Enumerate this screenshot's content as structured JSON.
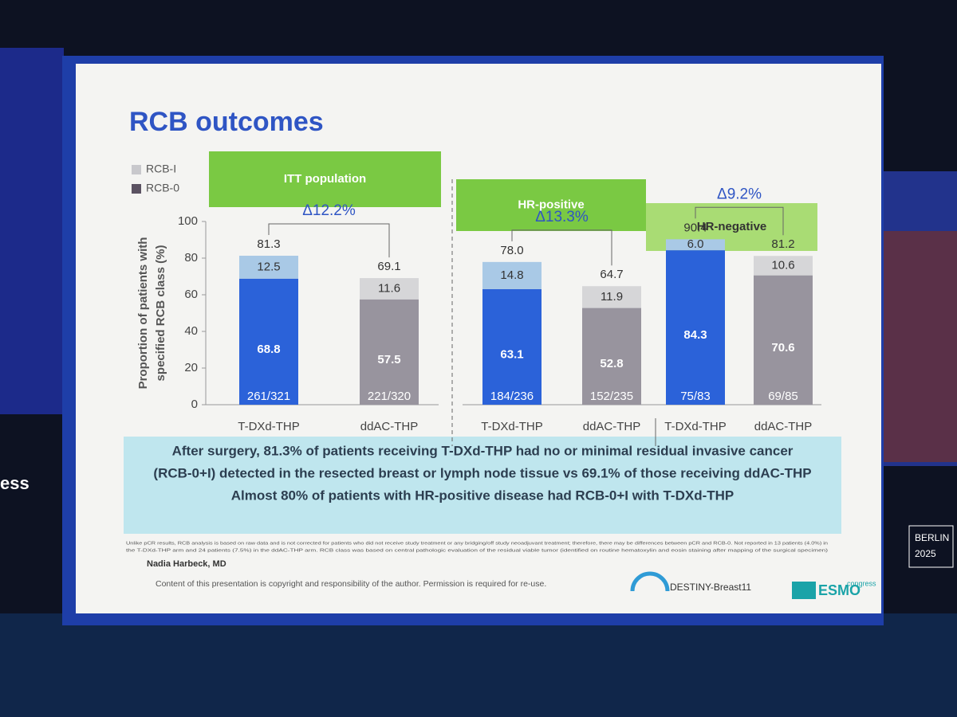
{
  "slide": {
    "title": "RCB outcomes",
    "summary": [
      "After surgery, 81.3% of patients receiving T-DXd-THP had no or minimal residual invasive cancer",
      "(RCB-0+I) detected in the resected breast or lymph node tissue vs 69.1% of those receiving ddAC-THP",
      "Almost 80% of patients with HR-positive disease had RCB-0+I with T-DXd-THP"
    ],
    "footnote": [
      "Unlike pCR results, RCB analysis is based on raw data and is not corrected for patients who did not receive study treatment or any bridging/off study neoadjuvant treatment; therefore, there may be differences between pCR and RCB-0. Not reported in 13 patients (4.0%) in",
      "the T-DXd-THP arm and 24 patients (7.5%) in the ddAC-THP arm. RCB class was based on central pathologic evaluation of the residual viable tumor (identified on routine hematoxylin and eosin staining after mapping of the surgical specimen)"
    ],
    "author": "Nadia Harbeck, MD",
    "copyright": "Content of this presentation is copyright and responsibility of the author. Permission is required for re-use.",
    "logo": "DESTINY-Breast11",
    "congress_city": "BERLIN",
    "congress_year": "2025",
    "congress_word": "congress",
    "left_screen_text": "ess"
  },
  "chart_data": {
    "type": "bar",
    "stacked": true,
    "y_label": [
      "Proportion of patients with",
      "specified RCB class (%)"
    ],
    "ylim": [
      0,
      100
    ],
    "yticks": [
      0,
      20,
      40,
      60,
      80,
      100
    ],
    "categories": [
      "T-DXd-THP",
      "ddAC-THP",
      "T-DXd-THP",
      "ddAC-THP",
      "T-DXd-THP",
      "ddAC-THP"
    ],
    "groups": [
      {
        "label": "ITT population",
        "delta": "Δ12.2%",
        "color": "#7ac943"
      },
      {
        "label": "HR-positive",
        "delta": "Δ13.3%",
        "color": "#7ac943"
      },
      {
        "label": "HR-negative",
        "delta": "Δ9.2%",
        "color": "#a9dc74"
      }
    ],
    "series": [
      {
        "name": "RCB-0",
        "color": "#5b5262",
        "bar_colors": [
          "#2b62d9",
          "#98949e",
          "#2b62d9",
          "#98949e",
          "#2b62d9",
          "#98949e"
        ],
        "values": [
          68.8,
          57.5,
          63.1,
          52.8,
          84.3,
          70.6
        ]
      },
      {
        "name": "RCB-I",
        "color": "#c8c8cc",
        "bar_colors": [
          "#a9c9e6",
          "#d6d6d8",
          "#a9c9e6",
          "#d6d6d8",
          "#a9c9e6",
          "#d6d6d8"
        ],
        "values": [
          12.5,
          11.6,
          14.8,
          11.9,
          6.0,
          10.6
        ],
        "value_labels": [
          "12.5",
          "11.6",
          "14.8",
          "11.9",
          "6.0",
          "10.6"
        ]
      }
    ],
    "total_labels": [
      "81.3",
      "69.1",
      "78.0",
      "64.7",
      "90.4",
      "81.2"
    ],
    "n_labels": [
      "261/321",
      "221/320",
      "184/236",
      "152/235",
      "75/83",
      "69/85"
    ]
  }
}
